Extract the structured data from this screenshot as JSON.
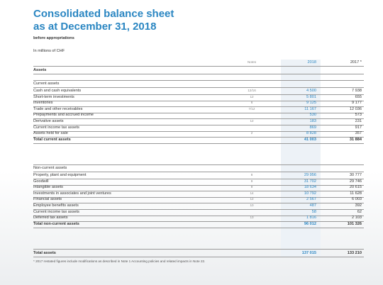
{
  "header": {
    "title_line1": "Consolidated balance sheet",
    "title_line2": "as at December 31, 2018",
    "subtitle": "before appropriations",
    "units": "In millions of CHF"
  },
  "table": {
    "columns": [
      "Notes",
      "2018",
      "2017 *"
    ],
    "heading": "Assets",
    "sections": [
      {
        "title": "Current assets",
        "rows": [
          [
            "Cash and cash equivalents",
            "12/16",
            "4 500",
            "7 938"
          ],
          [
            "Short-term investments",
            "12",
            "5 801",
            "655"
          ],
          [
            "Inventories",
            "6",
            "9 125",
            "9 177"
          ],
          [
            "Trade and other receivables",
            "7/12",
            "11 167",
            "12 036"
          ],
          [
            "Prepayments and accrued income",
            null,
            "530",
            "573"
          ],
          [
            "Derivative assets",
            "12",
            "183",
            "231"
          ],
          [
            "Current income tax assets",
            null,
            "869",
            "917"
          ],
          [
            "Assets held for sale",
            "2",
            "8 828",
            "357"
          ]
        ],
        "total": [
          "Total current assets",
          "41 003",
          "31 884"
        ]
      },
      {
        "title": "Non-current assets",
        "rows": [
          [
            "Property, plant and equipment",
            "8",
            "29 956",
            "30 777"
          ],
          [
            "Goodwill",
            "9",
            "31 702",
            "29 746"
          ],
          [
            "Intangible assets",
            "9",
            "18 634",
            "20 615"
          ],
          [
            "Investments in associates and joint ventures",
            "14",
            "10 792",
            "11 628"
          ],
          [
            "Financial assets",
            "12",
            "2 567",
            "6 003"
          ],
          [
            "Employee benefits assets",
            "10",
            "487",
            "392"
          ],
          [
            "Current income tax assets",
            null,
            "58",
            "62"
          ],
          [
            "Deferred tax assets",
            "13",
            "1 816",
            "2 103"
          ]
        ],
        "total": [
          "Total non-current assets",
          "96 012",
          "101 326"
        ]
      }
    ],
    "grand_total": [
      "Total assets",
      "137 015",
      "133 210"
    ],
    "footnote": "*    2017 restated figures include modifications as described in Note 1 Accounting policies and related impacts in Note 22."
  }
}
